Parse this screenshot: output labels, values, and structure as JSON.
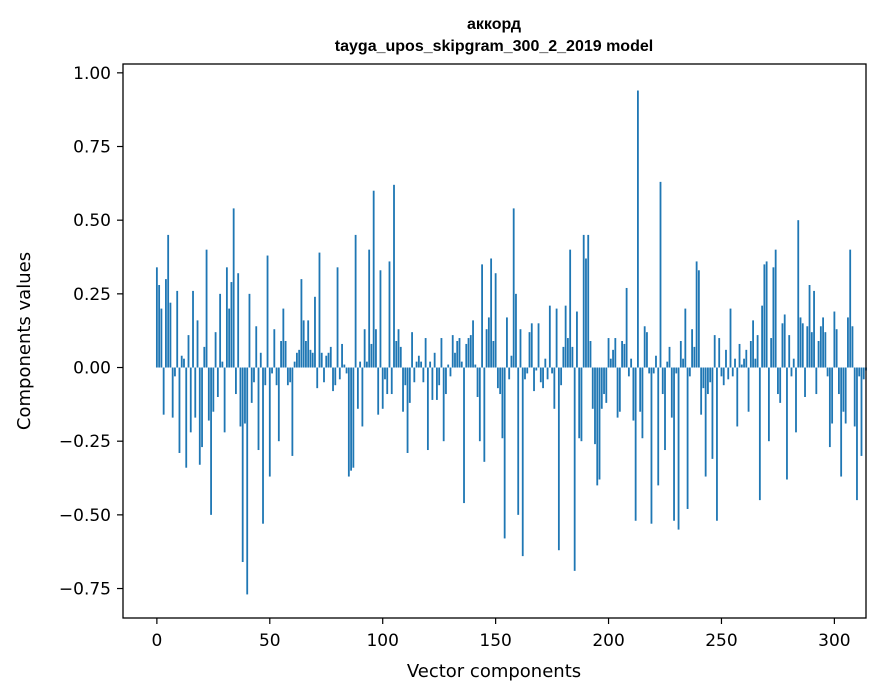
{
  "chart_data": {
    "type": "bar",
    "title": "аккорд",
    "subtitle": "tayga_upos_skipgram_300_2_2019 model",
    "xlabel": "Vector components",
    "ylabel": "Components values",
    "xlim": [
      -15,
      314
    ],
    "ylim": [
      -0.85,
      1.03
    ],
    "x_ticks": [
      0,
      50,
      100,
      150,
      200,
      250,
      300
    ],
    "x_tick_labels": [
      "0",
      "50",
      "100",
      "150",
      "200",
      "250",
      "300"
    ],
    "y_ticks": [
      1.0,
      0.75,
      0.5,
      0.25,
      0.0,
      -0.25,
      -0.5,
      -0.75
    ],
    "y_tick_labels": [
      "1.00",
      "0.75",
      "0.50",
      "0.25",
      "0.00",
      "−0.25",
      "−0.50",
      "−0.75"
    ],
    "grid": false,
    "bar_color": "#1f77b4",
    "values": [
      0.34,
      0.28,
      0.2,
      -0.16,
      0.3,
      0.45,
      0.22,
      -0.17,
      -0.03,
      0.26,
      -0.29,
      0.04,
      0.03,
      -0.34,
      0.11,
      -0.22,
      0.26,
      -0.17,
      0.16,
      -0.33,
      -0.27,
      0.07,
      0.4,
      -0.18,
      -0.5,
      -0.15,
      0.12,
      -0.1,
      0.25,
      0.02,
      -0.22,
      0.34,
      0.2,
      0.29,
      0.54,
      -0.09,
      0.32,
      -0.2,
      -0.66,
      -0.19,
      -0.77,
      0.25,
      -0.12,
      -0.05,
      0.14,
      -0.28,
      0.05,
      -0.53,
      -0.06,
      0.38,
      -0.37,
      -0.02,
      0.13,
      -0.06,
      -0.25,
      0.09,
      0.2,
      0.09,
      -0.06,
      -0.05,
      -0.3,
      0.02,
      0.05,
      0.06,
      0.3,
      0.16,
      0.09,
      0.16,
      0.06,
      0.05,
      0.24,
      -0.07,
      0.39,
      0.05,
      -0.05,
      0.04,
      0.05,
      0.07,
      -0.08,
      -0.06,
      0.34,
      -0.04,
      0.08,
      0.01,
      -0.02,
      -0.37,
      -0.35,
      -0.34,
      0.45,
      -0.14,
      0.02,
      -0.2,
      0.13,
      0.02,
      0.4,
      0.08,
      0.6,
      0.13,
      -0.16,
      0.33,
      -0.14,
      -0.04,
      -0.09,
      0.36,
      -0.09,
      0.62,
      0.09,
      0.13,
      0.07,
      -0.15,
      -0.06,
      -0.29,
      -0.12,
      0.12,
      -0.05,
      0.02,
      0.04,
      0.02,
      -0.05,
      0.1,
      -0.28,
      0.02,
      -0.11,
      0.05,
      -0.11,
      -0.06,
      0.1,
      -0.25,
      -0.09,
      0.01,
      -0.03,
      0.11,
      0.05,
      0.09,
      0.1,
      0.02,
      -0.46,
      0.08,
      0.1,
      0.11,
      0.16,
      0.01,
      -0.1,
      -0.25,
      0.35,
      -0.32,
      0.13,
      0.17,
      0.37,
      0.09,
      0.32,
      -0.07,
      -0.09,
      -0.24,
      -0.58,
      0.17,
      -0.04,
      0.04,
      0.54,
      0.25,
      -0.5,
      0.13,
      -0.64,
      -0.04,
      -0.02,
      0.12,
      0.15,
      -0.08,
      -0.01,
      0.15,
      -0.05,
      -0.07,
      0.03,
      -0.04,
      0.21,
      -0.02,
      -0.14,
      0.2,
      -0.62,
      -0.06,
      0.07,
      0.21,
      0.1,
      0.4,
      0.07,
      -0.69,
      0.19,
      -0.24,
      -0.25,
      0.45,
      0.37,
      0.45,
      0.09,
      -0.14,
      -0.26,
      -0.4,
      -0.38,
      -0.14,
      -0.09,
      -0.12,
      0.1,
      0.03,
      0.06,
      0.1,
      -0.17,
      -0.15,
      0.09,
      0.08,
      0.27,
      -0.03,
      0.03,
      -0.18,
      -0.52,
      0.94,
      -0.15,
      -0.24,
      0.14,
      0.12,
      -0.02,
      -0.53,
      -0.02,
      0.04,
      -0.4,
      0.63,
      -0.09,
      -0.28,
      0.02,
      0.07,
      -0.17,
      -0.52,
      -0.02,
      -0.55,
      0.09,
      0.03,
      0.2,
      -0.48,
      -0.03,
      0.13,
      0.07,
      0.36,
      0.33,
      -0.16,
      -0.07,
      -0.37,
      -0.09,
      -0.05,
      -0.31,
      0.11,
      -0.52,
      0.1,
      -0.03,
      -0.06,
      0.06,
      -0.04,
      0.2,
      -0.03,
      0.03,
      -0.2,
      0.08,
      0.01,
      0.03,
      0.06,
      -0.15,
      0.09,
      0.16,
      0.03,
      0.11,
      -0.45,
      0.21,
      0.35,
      0.36,
      -0.25,
      0.1,
      0.34,
      0.4,
      -0.09,
      -0.12,
      0.15,
      0.18,
      -0.38,
      0.11,
      -0.03,
      0.03,
      -0.22,
      0.5,
      0.17,
      0.15,
      -0.1,
      0.14,
      0.28,
      0.12,
      0.26,
      -0.09,
      0.09,
      0.14,
      0.17,
      0.12,
      -0.03,
      -0.27,
      -0.19,
      0.19,
      0.13,
      -0.09,
      -0.37,
      -0.15,
      -0.19,
      0.17,
      0.4,
      0.14,
      -0.2,
      -0.45,
      -0.03,
      -0.3,
      -0.04,
      -0.01
    ]
  }
}
